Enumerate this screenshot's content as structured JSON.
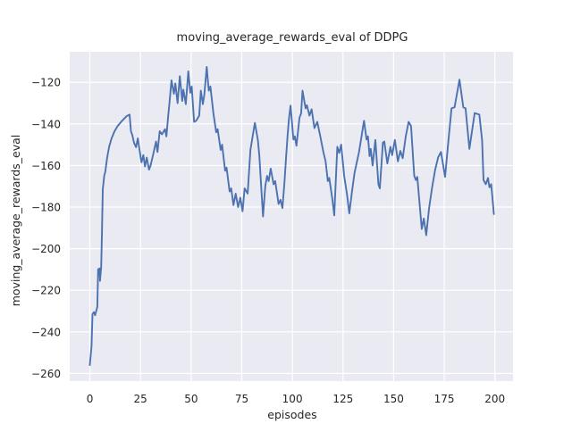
{
  "figure": {
    "title": "moving_average_rewards_eval of DDPG",
    "xlabel": "episodes",
    "ylabel": "moving_average_rewards_eval"
  },
  "colors": {
    "line": "#4c72b0",
    "plot_background": "#eaeaf2",
    "grid": "#ffffff",
    "text": "#262626",
    "figure_background": "#ffffff"
  },
  "chart_data": {
    "type": "line",
    "title": "moving_average_rewards_eval of DDPG",
    "xlabel": "episodes",
    "ylabel": "moving_average_rewards_eval",
    "legend_position": "none",
    "grid": true,
    "xlim": [
      -9.95,
      208.95
    ],
    "ylim": [
      -263.7,
      -105.3
    ],
    "xticks": [
      0,
      25,
      50,
      75,
      100,
      125,
      150,
      175,
      200
    ],
    "yticks": [
      -120,
      -140,
      -160,
      -180,
      -200,
      -220,
      -240,
      -260
    ],
    "series": [
      {
        "name": "moving_average_rewards_eval",
        "color": "#4c72b0",
        "points": [
          [
            0,
            -256
          ],
          [
            0.8,
            -247
          ],
          [
            1.3,
            -231.5
          ],
          [
            2,
            -230.5
          ],
          [
            2.6,
            -232
          ],
          [
            3.3,
            -229.5
          ],
          [
            3.7,
            -228
          ],
          [
            4.1,
            -210
          ],
          [
            4.7,
            -209.5
          ],
          [
            5,
            -215.5
          ],
          [
            5.6,
            -209
          ],
          [
            6,
            -192
          ],
          [
            6.4,
            -171.5
          ],
          [
            7.1,
            -165
          ],
          [
            7.6,
            -163
          ],
          [
            8.5,
            -156.5
          ],
          [
            9.5,
            -151
          ],
          [
            10.7,
            -147
          ],
          [
            12.2,
            -143.5
          ],
          [
            13.7,
            -141
          ],
          [
            15.9,
            -138.5
          ],
          [
            18.1,
            -136.3
          ],
          [
            19.6,
            -135.5
          ],
          [
            20.3,
            -143.5
          ],
          [
            21,
            -145.5
          ],
          [
            21.8,
            -149
          ],
          [
            22.8,
            -151.2
          ],
          [
            23.7,
            -147
          ],
          [
            24.7,
            -153.5
          ],
          [
            25.5,
            -158.5
          ],
          [
            26.4,
            -155
          ],
          [
            27.2,
            -160.5
          ],
          [
            28.1,
            -156.2
          ],
          [
            29.2,
            -162
          ],
          [
            30,
            -160
          ],
          [
            31.2,
            -155
          ],
          [
            32.7,
            -148.5
          ],
          [
            33.4,
            -153.5
          ],
          [
            34.5,
            -143.5
          ],
          [
            35.6,
            -145
          ],
          [
            37.1,
            -142.5
          ],
          [
            37.8,
            -146
          ],
          [
            38.6,
            -137
          ],
          [
            39.3,
            -130
          ],
          [
            40.3,
            -119
          ],
          [
            41.5,
            -125.5
          ],
          [
            42.2,
            -120.5
          ],
          [
            43.3,
            -130
          ],
          [
            44.4,
            -117
          ],
          [
            45.6,
            -129
          ],
          [
            46.2,
            -123.5
          ],
          [
            47.4,
            -130.5
          ],
          [
            48.6,
            -114.7
          ],
          [
            49.6,
            -125
          ],
          [
            50.3,
            -122
          ],
          [
            51.5,
            -139
          ],
          [
            52.5,
            -138.5
          ],
          [
            54,
            -136
          ],
          [
            54.8,
            -124
          ],
          [
            55.8,
            -130.5
          ],
          [
            56.5,
            -126
          ],
          [
            57.7,
            -112.6
          ],
          [
            58.7,
            -124
          ],
          [
            59.5,
            -122
          ],
          [
            61,
            -135
          ],
          [
            62.4,
            -144
          ],
          [
            63.1,
            -142.5
          ],
          [
            64.6,
            -152.5
          ],
          [
            65.3,
            -150
          ],
          [
            66.8,
            -162.5
          ],
          [
            67.5,
            -161
          ],
          [
            69,
            -172.5
          ],
          [
            69.8,
            -171
          ],
          [
            70.9,
            -179
          ],
          [
            72,
            -173.5
          ],
          [
            73.2,
            -180
          ],
          [
            74.3,
            -175.5
          ],
          [
            75.4,
            -182
          ],
          [
            76.4,
            -171
          ],
          [
            77.9,
            -173.5
          ],
          [
            79.3,
            -152.5
          ],
          [
            80.8,
            -143.5
          ],
          [
            81.5,
            -139.5
          ],
          [
            83,
            -148
          ],
          [
            83.7,
            -155.5
          ],
          [
            84.5,
            -168.5
          ],
          [
            85.5,
            -184.5
          ],
          [
            86.6,
            -170
          ],
          [
            87.5,
            -165
          ],
          [
            88.3,
            -167.5
          ],
          [
            89.3,
            -161.5
          ],
          [
            90.7,
            -169
          ],
          [
            91.5,
            -167.5
          ],
          [
            93.2,
            -178.5
          ],
          [
            94.1,
            -176.5
          ],
          [
            95.1,
            -180.5
          ],
          [
            96.1,
            -168
          ],
          [
            96.9,
            -156
          ],
          [
            97.6,
            -146
          ],
          [
            98.3,
            -137.5
          ],
          [
            99.1,
            -131.2
          ],
          [
            100.5,
            -147.5
          ],
          [
            101.2,
            -146
          ],
          [
            102,
            -150.5
          ],
          [
            103.5,
            -137
          ],
          [
            104.3,
            -135
          ],
          [
            105,
            -124
          ],
          [
            106.5,
            -132.5
          ],
          [
            107.2,
            -131
          ],
          [
            108.4,
            -136
          ],
          [
            109.5,
            -133
          ],
          [
            110.9,
            -142
          ],
          [
            112.3,
            -139
          ],
          [
            113.8,
            -146
          ],
          [
            115.3,
            -153.5
          ],
          [
            116.4,
            -158
          ],
          [
            117.5,
            -167.5
          ],
          [
            118.2,
            -166
          ],
          [
            119.7,
            -176
          ],
          [
            120.7,
            -184
          ],
          [
            122.2,
            -151
          ],
          [
            123.1,
            -154
          ],
          [
            124.1,
            -150
          ],
          [
            125.6,
            -165
          ],
          [
            127,
            -174
          ],
          [
            128.1,
            -183
          ],
          [
            129.5,
            -172
          ],
          [
            130.7,
            -163.5
          ],
          [
            132.9,
            -153.5
          ],
          [
            135.4,
            -138.5
          ],
          [
            136.6,
            -147.5
          ],
          [
            137.3,
            -146
          ],
          [
            138.1,
            -155.5
          ],
          [
            138.7,
            -152
          ],
          [
            139.6,
            -160
          ],
          [
            141,
            -147.7
          ],
          [
            142.5,
            -169
          ],
          [
            143.2,
            -171
          ],
          [
            144.7,
            -149
          ],
          [
            145.4,
            -148.5
          ],
          [
            146.9,
            -159
          ],
          [
            148.4,
            -151
          ],
          [
            149.3,
            -155
          ],
          [
            150.6,
            -147.7
          ],
          [
            152.1,
            -158
          ],
          [
            153.3,
            -153
          ],
          [
            154.5,
            -156.5
          ],
          [
            156,
            -146
          ],
          [
            157.4,
            -139
          ],
          [
            158.6,
            -141
          ],
          [
            160.2,
            -165
          ],
          [
            161,
            -167
          ],
          [
            161.7,
            -165.5
          ],
          [
            163.9,
            -190.5
          ],
          [
            164.9,
            -185.5
          ],
          [
            166.1,
            -193.5
          ],
          [
            167.5,
            -180.5
          ],
          [
            169,
            -170.5
          ],
          [
            170.5,
            -162
          ],
          [
            172,
            -156
          ],
          [
            173.4,
            -153.5
          ],
          [
            175.4,
            -165.5
          ],
          [
            177.1,
            -147.7
          ],
          [
            178.6,
            -132.5
          ],
          [
            180.1,
            -132
          ],
          [
            182.5,
            -118.7
          ],
          [
            184.4,
            -132
          ],
          [
            185.5,
            -132.5
          ],
          [
            187.4,
            -152
          ],
          [
            190,
            -134.8
          ],
          [
            192.3,
            -135.5
          ],
          [
            193.7,
            -147.7
          ],
          [
            194.4,
            -167
          ],
          [
            195.5,
            -169
          ],
          [
            196.6,
            -166
          ],
          [
            197.3,
            -170.5
          ],
          [
            198.2,
            -169
          ],
          [
            199.5,
            -183.4
          ]
        ]
      }
    ]
  }
}
